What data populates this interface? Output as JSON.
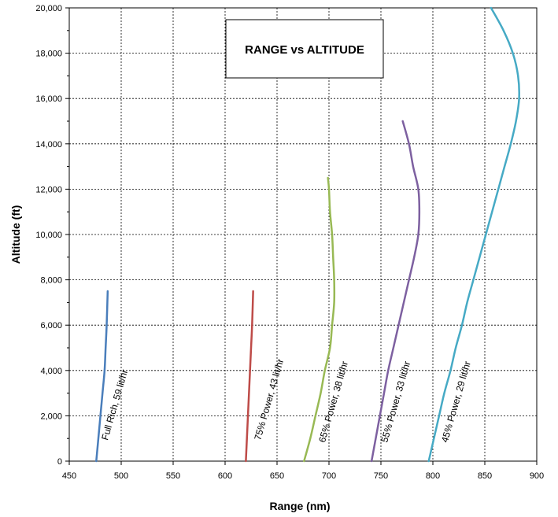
{
  "chart_data": {
    "type": "line",
    "title": "RANGE vs ALTITUDE",
    "xlabel": "Range (nm)",
    "ylabel": "Altitude (ft)",
    "xlim": [
      450,
      900
    ],
    "ylim": [
      0,
      20000
    ],
    "xticks": [
      450,
      500,
      550,
      600,
      650,
      700,
      750,
      800,
      850,
      900
    ],
    "yticks": [
      0,
      2000,
      4000,
      6000,
      8000,
      10000,
      12000,
      14000,
      16000,
      18000,
      20000
    ],
    "ytick_labels": [
      "0",
      "2,000",
      "4,000",
      "6,000",
      "8,000",
      "10,000",
      "12,000",
      "14,000",
      "16,000",
      "18,000",
      "20,000"
    ],
    "grid": true,
    "series": [
      {
        "name": "Full Rich, 59 lit/hr",
        "color": "#4a7ebb",
        "points": [
          [
            476,
            0
          ],
          [
            478,
            1000
          ],
          [
            480,
            2000
          ],
          [
            482,
            3000
          ],
          [
            484,
            4000
          ],
          [
            485,
            5000
          ],
          [
            486,
            6000
          ],
          [
            487,
            7500
          ]
        ],
        "label_x": 487,
        "label_y": 900
      },
      {
        "name": "75% Power, 43 lit/hr",
        "color": "#be4b48",
        "points": [
          [
            620,
            0
          ],
          [
            621,
            1000
          ],
          [
            622,
            2000
          ],
          [
            623,
            3000
          ],
          [
            624,
            4000
          ],
          [
            625,
            5000
          ],
          [
            626,
            6000
          ],
          [
            627,
            7500
          ]
        ],
        "label_x": 634,
        "label_y": 900
      },
      {
        "name": "65% Power, 38 lit/hr",
        "color": "#98b954",
        "points": [
          [
            676,
            0
          ],
          [
            682,
            1000
          ],
          [
            687,
            2000
          ],
          [
            692,
            3000
          ],
          [
            696,
            4000
          ],
          [
            701,
            5000
          ],
          [
            703,
            6000
          ],
          [
            705,
            7000
          ],
          [
            705,
            8000
          ],
          [
            704,
            9000
          ],
          [
            703,
            10000
          ],
          [
            701,
            11000
          ],
          [
            700,
            12000
          ],
          [
            699,
            12500
          ]
        ],
        "label_x": 696,
        "label_y": 800
      },
      {
        "name": "55% Power, 33 lit/hr",
        "color": "#7d60a0",
        "points": [
          [
            741,
            0
          ],
          [
            745,
            1000
          ],
          [
            749,
            2000
          ],
          [
            753,
            3000
          ],
          [
            757,
            4000
          ],
          [
            762,
            5000
          ],
          [
            767,
            6000
          ],
          [
            772,
            7000
          ],
          [
            777,
            8000
          ],
          [
            782,
            9000
          ],
          [
            786,
            10000
          ],
          [
            787,
            11000
          ],
          [
            786,
            12000
          ],
          [
            781,
            13000
          ],
          [
            777,
            14000
          ],
          [
            771,
            15000
          ]
        ],
        "label_x": 756,
        "label_y": 800
      },
      {
        "name": "45% Power, 29 lit/hr",
        "color": "#46aac5",
        "points": [
          [
            796,
            0
          ],
          [
            801,
            1000
          ],
          [
            806,
            2000
          ],
          [
            811,
            3000
          ],
          [
            817,
            4000
          ],
          [
            822,
            5000
          ],
          [
            828,
            6000
          ],
          [
            833,
            7000
          ],
          [
            839,
            8000
          ],
          [
            845,
            9000
          ],
          [
            851,
            10000
          ],
          [
            857,
            11000
          ],
          [
            863,
            12000
          ],
          [
            869,
            13000
          ],
          [
            875,
            14000
          ],
          [
            880,
            15000
          ],
          [
            883,
            16000
          ],
          [
            882,
            17000
          ],
          [
            877,
            18000
          ],
          [
            868,
            19000
          ],
          [
            856,
            20000
          ]
        ],
        "label_x": 814,
        "label_y": 800
      }
    ]
  }
}
